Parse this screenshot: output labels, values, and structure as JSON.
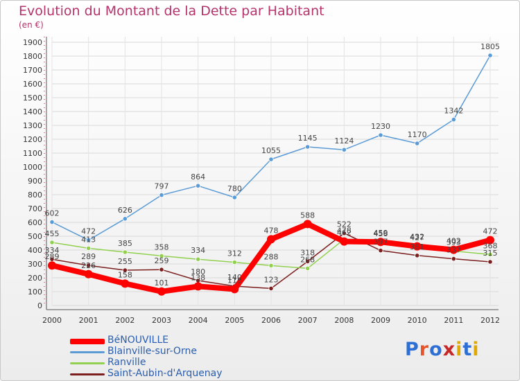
{
  "chart_data": {
    "type": "line",
    "title": "Evolution du Montant de la Dette par Habitant",
    "subtitle": "(en €)",
    "x": [
      "2000",
      "2001",
      "2002",
      "2003",
      "2004",
      "2005",
      "2006",
      "2007",
      "2008",
      "2009",
      "2010",
      "2011",
      "2012"
    ],
    "ylim": [
      0,
      1900
    ],
    "yticks": [
      0,
      100,
      200,
      300,
      400,
      500,
      600,
      700,
      800,
      900,
      1000,
      1100,
      1200,
      1300,
      1400,
      1500,
      1600,
      1700,
      1800,
      1900
    ],
    "grid": true,
    "legend_position": "bottom-left",
    "series": [
      {
        "name": "BéNOUVILLE",
        "color": "#ff0000",
        "values": [
          289,
          226,
          158,
          101,
          138,
          118,
          478,
          588,
          462,
          459,
          427,
          402,
          472
        ],
        "labels": [
          "289",
          "226",
          "158",
          "101",
          "138",
          "118",
          "478",
          "588",
          "462",
          "459",
          "427",
          "402",
          "472"
        ]
      },
      {
        "name": "Blainville-sur-Orne",
        "color": "#5b9bd5",
        "values": [
          602,
          472,
          626,
          797,
          864,
          780,
          1055,
          1145,
          1124,
          1230,
          1170,
          1342,
          1805
        ],
        "labels": [
          "602",
          "472",
          "626",
          "797",
          "864",
          "780",
          "1055",
          "1145",
          "1124",
          "1230",
          "1170",
          "1342",
          "1805"
        ]
      },
      {
        "name": "Ranville",
        "color": "#92d050",
        "values": [
          455,
          413,
          385,
          358,
          334,
          312,
          288,
          268,
          478,
          456,
          432,
          393,
          368
        ],
        "labels": [
          "455",
          "413",
          "385",
          "358",
          "334",
          "312",
          "288",
          "268",
          "478",
          "456",
          "432",
          "393",
          "368"
        ]
      },
      {
        "name": "Saint-Aubin-d'Arquenay",
        "color": "#7b1f1f",
        "values": [
          334,
          289,
          255,
          259,
          180,
          140,
          123,
          318,
          522,
          397,
          361,
          337,
          315
        ],
        "labels": [
          "334",
          "289",
          "255",
          "259",
          "180",
          "140",
          "123",
          "318",
          "522",
          "397",
          "361",
          "337",
          "315"
        ]
      }
    ]
  },
  "logo": {
    "text": "Proxiti",
    "colors": [
      "#2e6fd6",
      "#e8542a",
      "#2e6fd6",
      "#c62828",
      "#e0a800",
      "#2e6fd6",
      "#e0a800"
    ]
  }
}
